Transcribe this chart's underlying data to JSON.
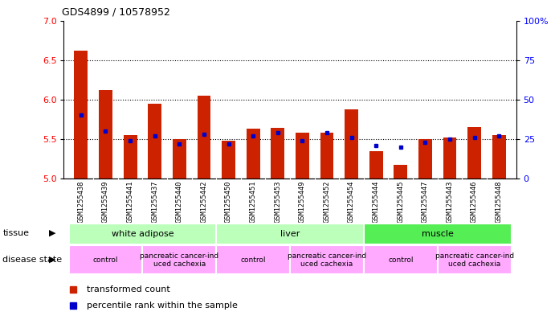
{
  "title": "GDS4899 / 10578952",
  "samples": [
    "GSM1255438",
    "GSM1255439",
    "GSM1255441",
    "GSM1255437",
    "GSM1255440",
    "GSM1255442",
    "GSM1255450",
    "GSM1255451",
    "GSM1255453",
    "GSM1255449",
    "GSM1255452",
    "GSM1255454",
    "GSM1255444",
    "GSM1255445",
    "GSM1255447",
    "GSM1255443",
    "GSM1255446",
    "GSM1255448"
  ],
  "red_values": [
    6.62,
    6.12,
    5.55,
    5.95,
    5.5,
    6.05,
    5.48,
    5.63,
    5.64,
    5.58,
    5.58,
    5.88,
    5.35,
    5.17,
    5.5,
    5.52,
    5.65,
    5.55
  ],
  "blue_values": [
    40,
    30,
    24,
    27,
    22,
    28,
    22,
    27,
    29,
    24,
    29,
    26,
    21,
    20,
    23,
    25,
    26,
    27
  ],
  "ymin": 5.0,
  "ymax": 7.0,
  "y2min": 0,
  "y2max": 100,
  "yticks": [
    5.0,
    5.5,
    6.0,
    6.5,
    7.0
  ],
  "y2ticks": [
    0,
    25,
    50,
    75,
    100
  ],
  "y2ticklabels": [
    "0",
    "25",
    "50",
    "75",
    "100%"
  ],
  "dotted_lines": [
    5.5,
    6.0,
    6.5
  ],
  "tissue_groups": [
    {
      "label": "white adipose",
      "start": 0,
      "end": 6,
      "color": "#aaffaa"
    },
    {
      "label": "liver",
      "start": 6,
      "end": 12,
      "color": "#aaffaa"
    },
    {
      "label": "muscle",
      "start": 12,
      "end": 18,
      "color": "#55ee55"
    }
  ],
  "disease_groups": [
    {
      "label": "control",
      "start": 0,
      "end": 3,
      "color": "#ffaaff"
    },
    {
      "label": "pancreatic cancer-ind\nuced cachexia",
      "start": 3,
      "end": 6,
      "color": "#ffaaff"
    },
    {
      "label": "control",
      "start": 6,
      "end": 9,
      "color": "#ffaaff"
    },
    {
      "label": "pancreatic cancer-ind\nuced cachexia",
      "start": 9,
      "end": 12,
      "color": "#ffaaff"
    },
    {
      "label": "control",
      "start": 12,
      "end": 15,
      "color": "#ffaaff"
    },
    {
      "label": "pancreatic cancer-ind\nuced cachexia",
      "start": 15,
      "end": 18,
      "color": "#ffaaff"
    }
  ],
  "bar_color": "#cc2200",
  "dot_color": "#0000cc",
  "bar_width": 0.55,
  "tick_label_bg": "#d4d4d4",
  "legend_items": [
    "transformed count",
    "percentile rank within the sample"
  ]
}
